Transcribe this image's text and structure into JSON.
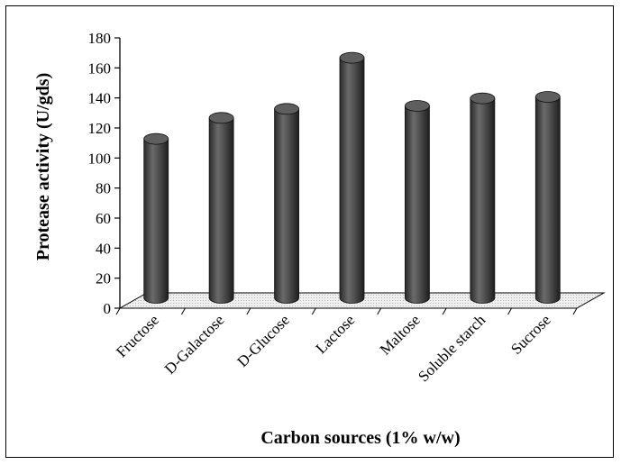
{
  "chart_data": {
    "type": "bar",
    "style": "3d-cylinder",
    "categories": [
      "Fructose",
      "D-Galactose",
      "D-Glucose",
      "Lactose",
      "Maltose",
      "Soluble starch",
      "Sucrose"
    ],
    "values": [
      110,
      124,
      130,
      164,
      132,
      137,
      138
    ],
    "xlabel": "Carbon sources (1% w/w)",
    "ylabel": "Protease activity (U/gds)",
    "ylim": [
      0,
      180
    ],
    "yticks": [
      0,
      20,
      40,
      60,
      80,
      100,
      120,
      140,
      160,
      180
    ],
    "grid": false,
    "legend": "none",
    "bar_color": "#4a4a4a",
    "floor_color": "#d8d8d8"
  }
}
